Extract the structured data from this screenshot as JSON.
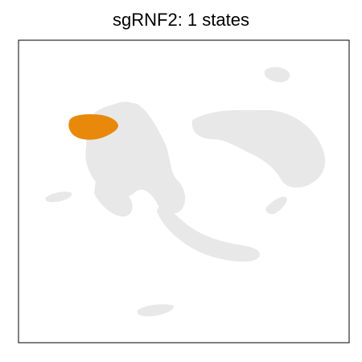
{
  "chart_data": {
    "type": "scatter",
    "title": "sgRNF2: 1 states",
    "xlabel": "",
    "ylabel": "",
    "axis_ticks": "none",
    "grid": "off",
    "series": [
      {
        "role": "background",
        "color": "#e8e8e8"
      },
      {
        "role": "highlight",
        "color": "#e8890c"
      }
    ]
  }
}
